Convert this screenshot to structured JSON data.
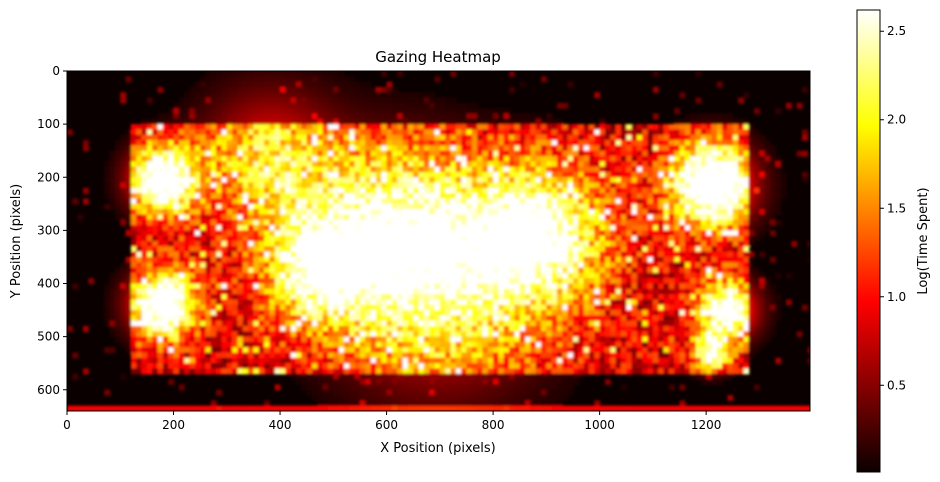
{
  "chart_data": {
    "type": "heatmap",
    "title": "Gazing Heatmap",
    "xlabel": "X Position (pixels)",
    "ylabel": "Y Position (pixels)",
    "xlim": [
      0,
      1395
    ],
    "ylim": [
      640,
      0
    ],
    "xticks": [
      0,
      200,
      400,
      600,
      800,
      1000,
      1200
    ],
    "yticks": [
      0,
      100,
      200,
      300,
      400,
      500,
      600
    ],
    "colormap": "hot",
    "colorbar": {
      "label": "Log(Time Spent)",
      "range": [
        0.01,
        2.62
      ],
      "ticks": [
        0.5,
        1.0,
        1.5,
        2.0,
        2.5
      ],
      "tick_labels": [
        "0.5",
        "1.0",
        "1.5",
        "2.0",
        "2.5"
      ]
    },
    "hotspots": [
      {
        "x": 180,
        "y": 205,
        "spread": 45,
        "value": 2.3
      },
      {
        "x": 180,
        "y": 440,
        "spread": 45,
        "value": 2.4
      },
      {
        "x": 1210,
        "y": 215,
        "spread": 55,
        "value": 2.6
      },
      {
        "x": 1240,
        "y": 450,
        "spread": 40,
        "value": 2.1
      },
      {
        "x": 1210,
        "y": 530,
        "spread": 25,
        "value": 1.8
      },
      {
        "x": 880,
        "y": 310,
        "spread": 90,
        "value": 1.9
      },
      {
        "x": 620,
        "y": 300,
        "spread": 110,
        "value": 1.5
      },
      {
        "x": 470,
        "y": 370,
        "spread": 70,
        "value": 1.6
      },
      {
        "x": 700,
        "y": 430,
        "spread": 140,
        "value": 1.1
      },
      {
        "x": 380,
        "y": 160,
        "spread": 90,
        "value": 1.2
      }
    ],
    "active_region": {
      "x": [
        120,
        1280
      ],
      "y": [
        100,
        570
      ]
    }
  }
}
